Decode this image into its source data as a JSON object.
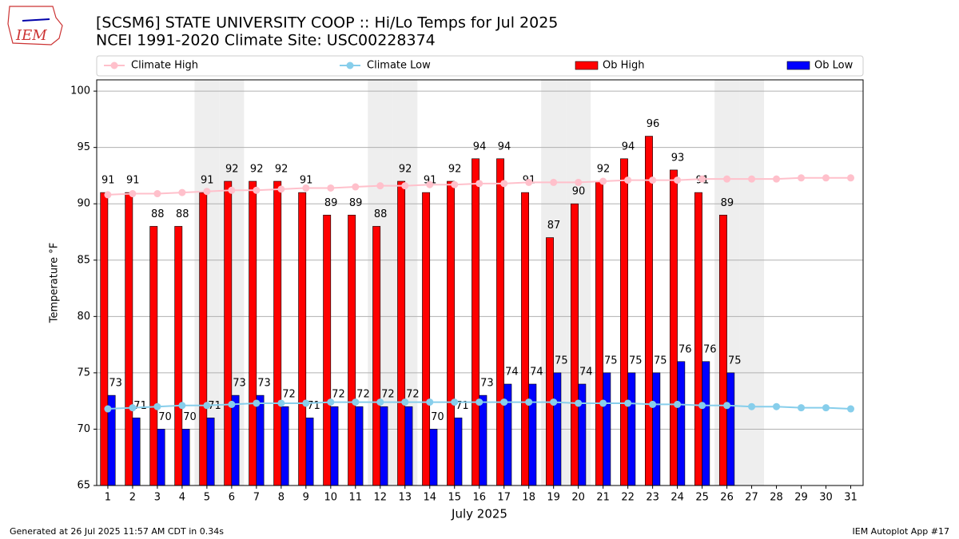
{
  "logo_text": "IEM",
  "footer_left": "Generated at 26 Jul 2025 11:57 AM CDT in 0.34s",
  "footer_right": "IEM Autoplot App #17",
  "chart_data": {
    "type": "bar",
    "title": "[SCSM6] STATE UNIVERSITY COOP :: Hi/Lo Temps for Jul 2025",
    "subtitle": "NCEI 1991-2020 Climate Site: USC00228374",
    "x_label": "July 2025",
    "y_label": "Temperature °F",
    "x": [
      1,
      2,
      3,
      4,
      5,
      6,
      7,
      8,
      9,
      10,
      11,
      12,
      13,
      14,
      15,
      16,
      17,
      18,
      19,
      20,
      21,
      22,
      23,
      24,
      25,
      26,
      27,
      28,
      29,
      30,
      31
    ],
    "xlim": [
      0.55,
      31.5
    ],
    "xticks": [
      1,
      2,
      3,
      4,
      5,
      6,
      7,
      8,
      9,
      10,
      11,
      12,
      13,
      14,
      15,
      16,
      17,
      18,
      19,
      20,
      21,
      22,
      23,
      24,
      25,
      26,
      27,
      28,
      29,
      30,
      31
    ],
    "ylim": [
      65,
      101
    ],
    "yticks": [
      65,
      70,
      75,
      80,
      85,
      90,
      95,
      100
    ],
    "grid": true,
    "shaded_days": [
      5,
      6,
      12,
      13,
      19,
      20,
      26,
      27
    ],
    "shade_color": "#eeeeee",
    "series": [
      {
        "name": "Climate High",
        "kind": "line",
        "color": "#ffc0cb",
        "values": [
          90.8,
          90.9,
          90.9,
          91.0,
          91.1,
          91.2,
          91.2,
          91.3,
          91.4,
          91.4,
          91.5,
          91.6,
          91.6,
          91.7,
          91.7,
          91.8,
          91.8,
          91.9,
          91.9,
          91.9,
          92.0,
          92.1,
          92.1,
          92.1,
          92.2,
          92.2,
          92.2,
          92.2,
          92.3,
          92.3,
          92.3
        ]
      },
      {
        "name": "Climate Low",
        "kind": "line",
        "color": "#87ceeb",
        "values": [
          71.8,
          71.9,
          72.0,
          72.1,
          72.1,
          72.2,
          72.3,
          72.3,
          72.3,
          72.4,
          72.4,
          72.4,
          72.4,
          72.4,
          72.4,
          72.4,
          72.4,
          72.4,
          72.4,
          72.3,
          72.3,
          72.3,
          72.2,
          72.2,
          72.1,
          72.1,
          72.0,
          72.0,
          71.9,
          71.9,
          71.8
        ]
      },
      {
        "name": "Ob High",
        "kind": "bar",
        "color": "#ff0000",
        "offset": -0.3,
        "values": [
          91,
          91,
          88,
          88,
          91,
          92,
          92,
          92,
          91,
          89,
          89,
          88,
          92,
          91,
          92,
          94,
          94,
          91,
          87,
          90,
          92,
          94,
          96,
          93,
          91,
          89,
          null,
          null,
          null,
          null,
          null
        ]
      },
      {
        "name": "Ob Low",
        "kind": "bar",
        "color": "#0000ff",
        "offset": 0,
        "values": [
          73,
          71,
          70,
          70,
          71,
          73,
          73,
          72,
          71,
          72,
          72,
          72,
          72,
          70,
          71,
          73,
          74,
          74,
          75,
          74,
          75,
          75,
          75,
          76,
          76,
          75,
          null,
          null,
          null,
          null,
          null
        ]
      }
    ]
  }
}
